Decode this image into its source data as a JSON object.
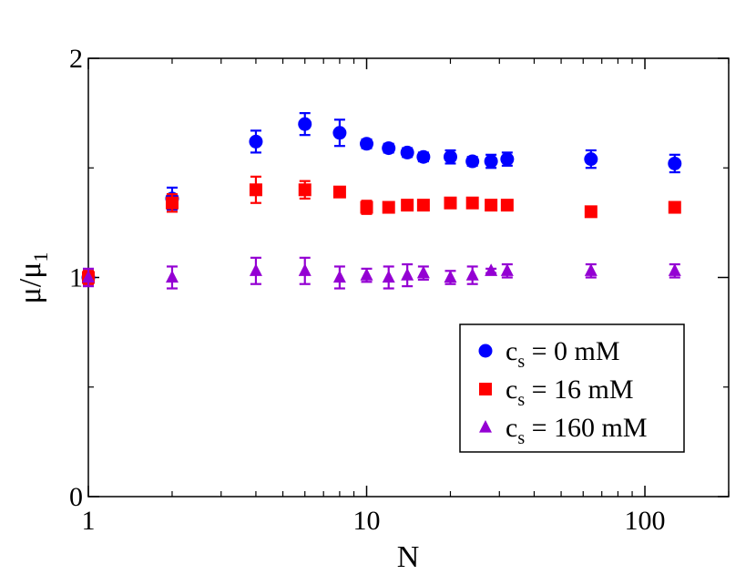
{
  "chart_data": {
    "type": "scatter",
    "xscale": "log",
    "xlim": [
      1,
      200
    ],
    "ylim": [
      0,
      2
    ],
    "xlabel": "N",
    "ylabel": {
      "main": "μ/μ",
      "sub": "1"
    },
    "x_ticks": [
      {
        "value": 1,
        "label": "1"
      },
      {
        "value": 10,
        "label": "10"
      },
      {
        "value": 100,
        "label": "100"
      }
    ],
    "y_ticks": [
      {
        "value": 0,
        "label": "0"
      },
      {
        "value": 1,
        "label": "1"
      },
      {
        "value": 2,
        "label": "2"
      }
    ],
    "y_minor_ticks": [
      0.5,
      1.5
    ],
    "grid": false,
    "legend": {
      "position": "bottom-right"
    },
    "series": [
      {
        "name": "c_s = 0 mM",
        "label_main": "c",
        "label_sub": "s",
        "label_rest": " = 0 mM",
        "color": "#0000ff",
        "marker": "circle",
        "points": [
          {
            "x": 1,
            "y": 1.0,
            "err": 0.03
          },
          {
            "x": 2,
            "y": 1.36,
            "err": 0.05
          },
          {
            "x": 4,
            "y": 1.62,
            "err": 0.05
          },
          {
            "x": 6,
            "y": 1.7,
            "err": 0.05
          },
          {
            "x": 8,
            "y": 1.66,
            "err": 0.06
          },
          {
            "x": 10,
            "y": 1.61,
            "err": 0.02
          },
          {
            "x": 12,
            "y": 1.59,
            "err": 0.02
          },
          {
            "x": 14,
            "y": 1.57,
            "err": 0.02
          },
          {
            "x": 16,
            "y": 1.55,
            "err": 0.02
          },
          {
            "x": 20,
            "y": 1.55,
            "err": 0.03
          },
          {
            "x": 24,
            "y": 1.53,
            "err": 0.02
          },
          {
            "x": 28,
            "y": 1.53,
            "err": 0.03
          },
          {
            "x": 32,
            "y": 1.54,
            "err": 0.03
          },
          {
            "x": 64,
            "y": 1.54,
            "err": 0.04
          },
          {
            "x": 128,
            "y": 1.52,
            "err": 0.04
          }
        ]
      },
      {
        "name": "c_s = 16 mM",
        "label_main": "c",
        "label_sub": "s",
        "label_rest": " = 16 mM",
        "color": "#ff0000",
        "marker": "square",
        "points": [
          {
            "x": 1,
            "y": 1.0,
            "err": 0.03
          },
          {
            "x": 2,
            "y": 1.34,
            "err": 0.04
          },
          {
            "x": 4,
            "y": 1.4,
            "err": 0.06
          },
          {
            "x": 6,
            "y": 1.4,
            "err": 0.04
          },
          {
            "x": 8,
            "y": 1.39,
            "err": 0.02
          },
          {
            "x": 10,
            "y": 1.32,
            "err": 0.03
          },
          {
            "x": 12,
            "y": 1.32,
            "err": 0.02
          },
          {
            "x": 14,
            "y": 1.33,
            "err": 0.02
          },
          {
            "x": 16,
            "y": 1.33,
            "err": 0.02
          },
          {
            "x": 20,
            "y": 1.34,
            "err": 0.02
          },
          {
            "x": 24,
            "y": 1.34,
            "err": 0.02
          },
          {
            "x": 28,
            "y": 1.33,
            "err": 0.02
          },
          {
            "x": 32,
            "y": 1.33,
            "err": 0.02
          },
          {
            "x": 64,
            "y": 1.3,
            "err": 0.02
          },
          {
            "x": 128,
            "y": 1.32,
            "err": 0.02
          }
        ]
      },
      {
        "name": "c_s = 160 mM",
        "label_main": "c",
        "label_sub": "s",
        "label_rest": " = 160 mM",
        "color": "#9400d3",
        "marker": "triangle",
        "points": [
          {
            "x": 1,
            "y": 1.0,
            "err": 0.04
          },
          {
            "x": 2,
            "y": 1.0,
            "err": 0.05
          },
          {
            "x": 4,
            "y": 1.03,
            "err": 0.06
          },
          {
            "x": 6,
            "y": 1.03,
            "err": 0.06
          },
          {
            "x": 8,
            "y": 1.0,
            "err": 0.05
          },
          {
            "x": 10,
            "y": 1.01,
            "err": 0.03
          },
          {
            "x": 12,
            "y": 1.0,
            "err": 0.05
          },
          {
            "x": 14,
            "y": 1.01,
            "err": 0.05
          },
          {
            "x": 16,
            "y": 1.02,
            "err": 0.03
          },
          {
            "x": 20,
            "y": 1.0,
            "err": 0.03
          },
          {
            "x": 24,
            "y": 1.01,
            "err": 0.04
          },
          {
            "x": 28,
            "y": 1.03,
            "err": 0.01
          },
          {
            "x": 32,
            "y": 1.03,
            "err": 0.03
          },
          {
            "x": 64,
            "y": 1.03,
            "err": 0.03
          },
          {
            "x": 128,
            "y": 1.03,
            "err": 0.03
          }
        ]
      }
    ]
  }
}
